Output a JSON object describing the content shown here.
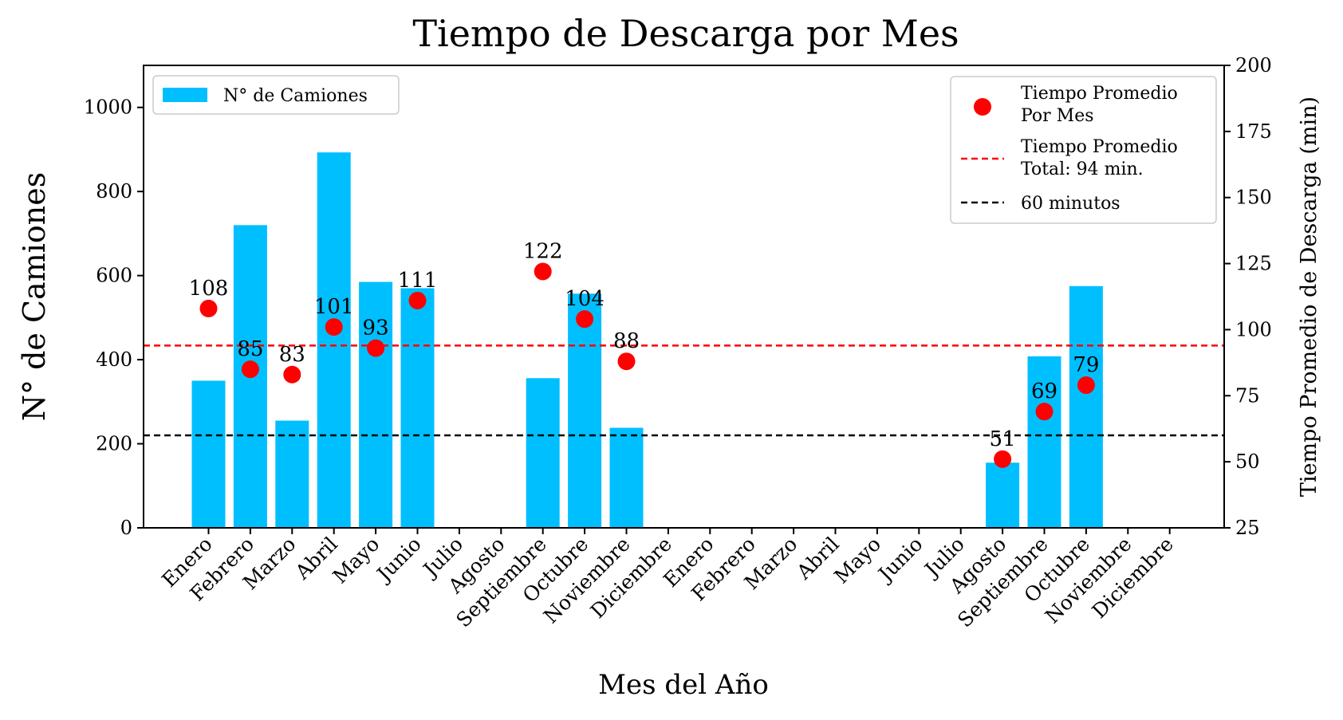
{
  "chart_data": {
    "type": "bar",
    "title": "Tiempo de Descarga por Mes",
    "xlabel": "Mes del Año",
    "ylabel": "N° de Camiones",
    "ylabel_right": "Tiempo Promedio de Descarga (min)",
    "categories": [
      "Enero",
      "Febrero",
      "Marzo",
      "Abril",
      "Mayo",
      "Junio",
      "Julio",
      "Agosto",
      "Septiembre",
      "Octubre",
      "Noviembre",
      "Diciembre",
      "Enero",
      "Febrero",
      "Marzo",
      "Abril",
      "Mayo",
      "Junio",
      "Julio",
      "Agosto",
      "Septiembre",
      "Octubre",
      "Noviembre",
      "Diciembre"
    ],
    "ylim": [
      0,
      1100
    ],
    "y2lim": [
      25,
      200
    ],
    "yticks": [
      0,
      200,
      400,
      600,
      800,
      1000
    ],
    "y2ticks": [
      25,
      50,
      75,
      100,
      125,
      150,
      175,
      200
    ],
    "series": [
      {
        "name": "N° de Camiones",
        "type": "bar",
        "axis": "left",
        "color": "#00bfff",
        "values": [
          350,
          720,
          255,
          893,
          585,
          570,
          null,
          null,
          356,
          557,
          238,
          null,
          null,
          null,
          null,
          null,
          null,
          null,
          null,
          155,
          408,
          575,
          null,
          null
        ]
      },
      {
        "name": "Tiempo Promedio\nPor Mes",
        "type": "scatter",
        "axis": "right",
        "color": "#ff0000",
        "values": [
          108,
          85,
          83,
          101,
          93,
          111,
          null,
          null,
          122,
          104,
          88,
          null,
          null,
          null,
          null,
          null,
          null,
          null,
          null,
          51,
          69,
          79,
          null,
          null
        ],
        "labels": [
          "108",
          "85",
          "83",
          "101",
          "93",
          "111",
          null,
          null,
          "122",
          "104",
          "88",
          null,
          null,
          null,
          null,
          null,
          null,
          null,
          null,
          "51",
          "69",
          "79",
          null,
          null
        ]
      }
    ],
    "reference_lines": [
      {
        "name": "Tiempo Promedio\nTotal: 94 min.",
        "axis": "right",
        "value": 94,
        "color": "#ff0000",
        "style": "dashed"
      },
      {
        "name": "60 minutos",
        "axis": "right",
        "value": 60,
        "color": "#000000",
        "style": "dashed"
      }
    ],
    "legend": {
      "left": {
        "placement": "top-left",
        "entries": [
          "N° de Camiones"
        ]
      },
      "right": {
        "placement": "top-right",
        "entries": [
          "Tiempo Promedio\nPor Mes",
          "Tiempo Promedio\nTotal: 94 min.",
          "60 minutos"
        ]
      }
    },
    "grid": false
  }
}
